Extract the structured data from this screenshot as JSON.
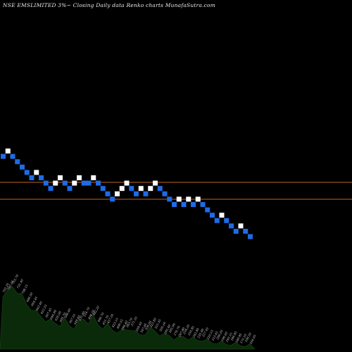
{
  "header": {
    "title": "NSE EMSLIMITED 3%~  Closing Daily data  Renko  charts MunafaSutra.com"
  },
  "colors": {
    "background": "#000000",
    "up_brick": "#ffffff",
    "down_brick": "#1e6be6",
    "resistance_line": "#c0651f",
    "volume_fill": "#0a2a0a"
  },
  "chart_data": {
    "type": "renko",
    "brick_size_percent": 3,
    "series": [
      {
        "name": "bricks",
        "values": [
          {
            "dir": "down",
            "level": 1
          },
          {
            "dir": "up",
            "level": 0
          },
          {
            "dir": "down",
            "level": 1
          },
          {
            "dir": "down",
            "level": 2
          },
          {
            "dir": "down",
            "level": 3
          },
          {
            "dir": "down",
            "level": 4
          },
          {
            "dir": "down",
            "level": 5
          },
          {
            "dir": "up",
            "level": 4
          },
          {
            "dir": "down",
            "level": 5
          },
          {
            "dir": "down",
            "level": 6
          },
          {
            "dir": "down",
            "level": 7
          },
          {
            "dir": "up",
            "level": 6
          },
          {
            "dir": "up",
            "level": 5
          },
          {
            "dir": "down",
            "level": 6
          },
          {
            "dir": "down",
            "level": 7
          },
          {
            "dir": "up",
            "level": 6
          },
          {
            "dir": "up",
            "level": 5
          },
          {
            "dir": "down",
            "level": 6
          },
          {
            "dir": "down",
            "level": 6
          },
          {
            "dir": "up",
            "level": 5
          },
          {
            "dir": "down",
            "level": 6
          },
          {
            "dir": "down",
            "level": 7
          },
          {
            "dir": "down",
            "level": 8
          },
          {
            "dir": "down",
            "level": 9
          },
          {
            "dir": "up",
            "level": 8
          },
          {
            "dir": "up",
            "level": 7
          },
          {
            "dir": "up",
            "level": 6
          },
          {
            "dir": "down",
            "level": 7
          },
          {
            "dir": "down",
            "level": 8
          },
          {
            "dir": "up",
            "level": 7
          },
          {
            "dir": "down",
            "level": 8
          },
          {
            "dir": "up",
            "level": 7
          },
          {
            "dir": "up",
            "level": 6
          },
          {
            "dir": "down",
            "level": 7
          },
          {
            "dir": "down",
            "level": 8
          },
          {
            "dir": "down",
            "level": 9
          },
          {
            "dir": "down",
            "level": 10
          },
          {
            "dir": "up",
            "level": 9
          },
          {
            "dir": "down",
            "level": 10
          },
          {
            "dir": "up",
            "level": 9
          },
          {
            "dir": "down",
            "level": 10
          },
          {
            "dir": "up",
            "level": 9
          },
          {
            "dir": "down",
            "level": 10
          },
          {
            "dir": "down",
            "level": 11
          },
          {
            "dir": "down",
            "level": 12
          },
          {
            "dir": "down",
            "level": 13
          },
          {
            "dir": "up",
            "level": 12
          },
          {
            "dir": "down",
            "level": 13
          },
          {
            "dir": "down",
            "level": 14
          },
          {
            "dir": "down",
            "level": 15
          },
          {
            "dir": "up",
            "level": 14
          },
          {
            "dir": "down",
            "level": 15
          },
          {
            "dir": "down",
            "level": 16
          }
        ]
      }
    ],
    "volume_profile": [
      0.82,
      0.86,
      0.95,
      0.88,
      0.8,
      0.68,
      0.62,
      0.55,
      0.5,
      0.45,
      0.42,
      0.4,
      0.38,
      0.44,
      0.36,
      0.34,
      0.4,
      0.46,
      0.42,
      0.48,
      0.38,
      0.34,
      0.36,
      0.3,
      0.28,
      0.26,
      0.3,
      0.32,
      0.24,
      0.22,
      0.26,
      0.3,
      0.28,
      0.24,
      0.2,
      0.22,
      0.18,
      0.16,
      0.2,
      0.18,
      0.15,
      0.14,
      0.16,
      0.12,
      0.1,
      0.12,
      0.09,
      0.08,
      0.1,
      0.07,
      0.06,
      0.08,
      0.05
    ],
    "price_labels": [
      "702.20",
      "782.25",
      "755.70",
      "731.40",
      "708.15",
      "686.50",
      "664.45",
      "643.40",
      "622.25",
      "667.45",
      "646.90",
      "626.00",
      "605.70",
      "586.40",
      "567.55",
      "549.40",
      "531.80",
      "514.70",
      "498.20",
      "482.20",
      "466.70",
      "451.70",
      "437.20",
      "423.15",
      "409.55",
      "396.40",
      "383.70",
      "371.35",
      "359.40",
      "347.85",
      "336.65",
      "325.80",
      "315.35",
      "305.20",
      "295.40",
      "285.90",
      "276.70",
      "267.80",
      "259.20",
      "250.85",
      "242.80",
      "235.00",
      "227.45",
      "220.15",
      "213.05",
      "206.20",
      "199.60",
      "193.15",
      "186.95",
      "180.95",
      "175.10",
      "169.50",
      "164.05"
    ],
    "horizontal_lines": [
      1,
      2
    ]
  }
}
